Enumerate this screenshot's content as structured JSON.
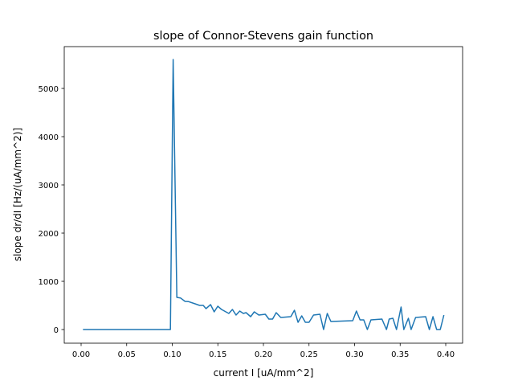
{
  "chart_data": {
    "type": "line",
    "title": "slope of Connor-Stevens gain function",
    "xlabel": "current I [uA/mm^2]",
    "ylabel": "slope dr/dI [Hz/(uA/mm^2)]",
    "xlim": [
      -0.0185,
      0.4185
    ],
    "ylim": [
      -283,
      5867
    ],
    "xticks": [
      0.0,
      0.05,
      0.1,
      0.15,
      0.2,
      0.25,
      0.3,
      0.35,
      0.4
    ],
    "xtick_labels": [
      "0.00",
      "0.05",
      "0.10",
      "0.15",
      "0.20",
      "0.25",
      "0.30",
      "0.35",
      "0.40"
    ],
    "yticks": [
      0,
      1000,
      2000,
      3000,
      4000,
      5000
    ],
    "ytick_labels": [
      "0",
      "1000",
      "2000",
      "3000",
      "4000",
      "5000"
    ],
    "grid": false,
    "series": [
      {
        "name": "slope",
        "color": "#1f77b4",
        "x": [
          0.002,
          0.098,
          0.101,
          0.105,
          0.109,
          0.114,
          0.118,
          0.125,
          0.13,
          0.134,
          0.137,
          0.142,
          0.146,
          0.15,
          0.154,
          0.162,
          0.166,
          0.17,
          0.174,
          0.178,
          0.181,
          0.186,
          0.19,
          0.195,
          0.202,
          0.206,
          0.21,
          0.214,
          0.219,
          0.23,
          0.234,
          0.238,
          0.242,
          0.246,
          0.25,
          0.255,
          0.262,
          0.266,
          0.27,
          0.274,
          0.298,
          0.302,
          0.306,
          0.31,
          0.314,
          0.318,
          0.33,
          0.335,
          0.338,
          0.342,
          0.346,
          0.351,
          0.354,
          0.359,
          0.362,
          0.367,
          0.378,
          0.382,
          0.386,
          0.39,
          0.394,
          0.398
        ],
        "y": [
          0,
          0,
          5600,
          667,
          655,
          583,
          578,
          533,
          500,
          500,
          433,
          517,
          367,
          483,
          417,
          333,
          417,
          300,
          383,
          333,
          350,
          267,
          367,
          300,
          317,
          217,
          217,
          350,
          250,
          267,
          400,
          150,
          283,
          150,
          150,
          300,
          317,
          0,
          333,
          167,
          183,
          383,
          200,
          200,
          0,
          200,
          217,
          0,
          217,
          233,
          0,
          467,
          0,
          233,
          0,
          250,
          267,
          0,
          267,
          0,
          0,
          300
        ]
      }
    ]
  }
}
